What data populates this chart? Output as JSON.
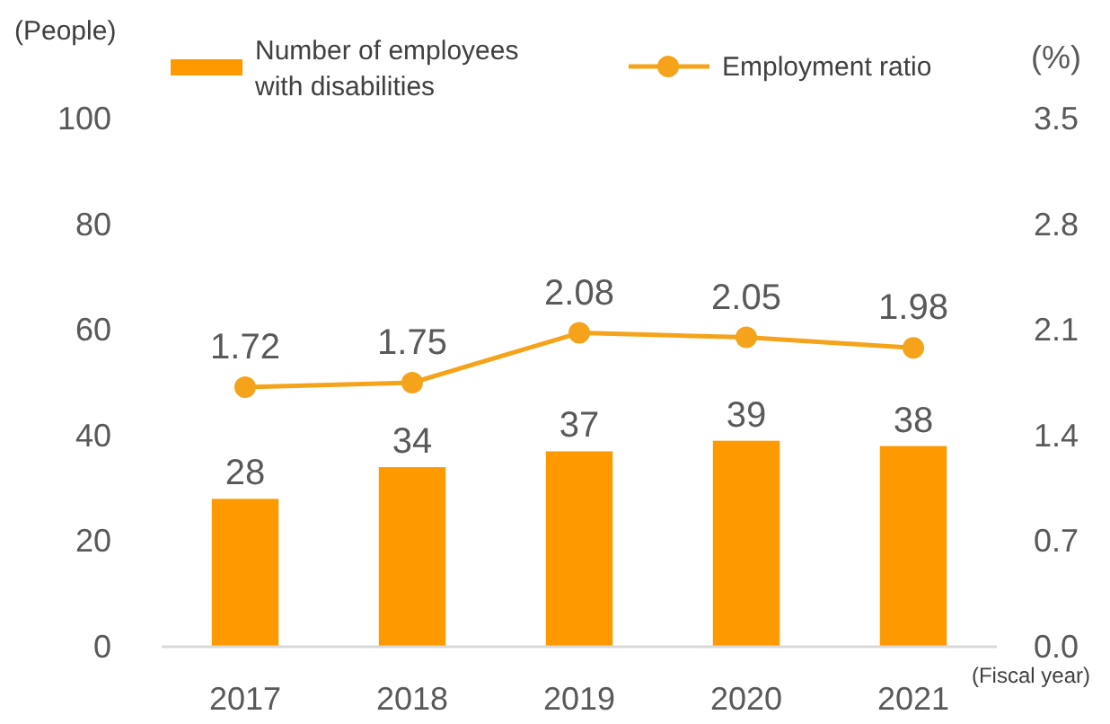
{
  "chart_data": {
    "type": "bar",
    "categories": [
      "2017",
      "2018",
      "2019",
      "2020",
      "2021"
    ],
    "series": [
      {
        "name": "Number of employees with disabilities",
        "color": "#ff9900",
        "values": [
          28,
          34,
          37,
          39,
          38
        ]
      },
      {
        "name": "Employment ratio",
        "type": "line",
        "axis": "y2",
        "color": "#f5a31a",
        "values": [
          1.72,
          1.75,
          2.08,
          2.05,
          1.98
        ],
        "marker": "circle"
      }
    ],
    "ylabel": "(People)",
    "y2label": "(%)",
    "xlabel": "(Fiscal year)",
    "ylim": [
      0,
      100
    ],
    "yticks": [
      0,
      20,
      40,
      60,
      80,
      100
    ],
    "y2lim": [
      0,
      3.5
    ],
    "y2ticks": [
      {
        "value": 0,
        "label": "0.0"
      },
      0.7,
      1.4,
      2.1,
      2.8,
      3.5
    ],
    "data_labels": true,
    "legend": "top",
    "grid": false
  }
}
